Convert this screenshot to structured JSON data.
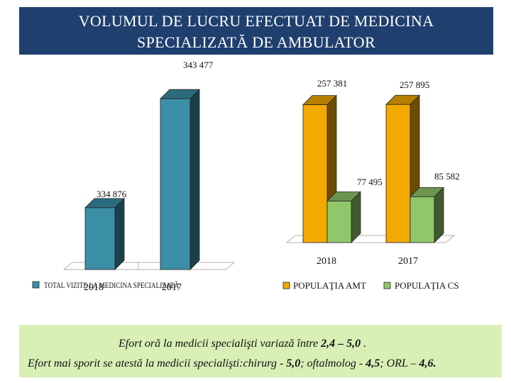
{
  "title": {
    "line1": "VOLUMUL DE LUCRU EFECTUAT DE MEDICINA",
    "line2": "SPECIALIZATĂ DE AMBULATOR"
  },
  "colors": {
    "banner": "#1f3f6e",
    "teal_bar": "#3b8fa6",
    "orange_bar": "#f2a900",
    "green_bar": "#8fc76a",
    "note_background": "#d8efb6"
  },
  "chart_data": [
    {
      "type": "bar",
      "categories": [
        "2018",
        "2017"
      ],
      "series": [
        {
          "name": "TOTAL VIZITE LA MEDICINA SPECIALIZATĂ",
          "values": [
            334876,
            343477
          ],
          "value_labels": [
            "334 876",
            "343 477"
          ]
        }
      ],
      "ylim": [
        330000,
        345000
      ],
      "legend": "bottom-left"
    },
    {
      "type": "bar",
      "categories": [
        "2018",
        "2017"
      ],
      "series": [
        {
          "name": "POPULAŢIA AMT",
          "values": [
            257381,
            257895
          ],
          "value_labels": [
            "257 381",
            "257 895"
          ]
        },
        {
          "name": "POPULAŢIA CS",
          "values": [
            77495,
            85582
          ],
          "value_labels": [
            "77 495",
            "85 582"
          ]
        }
      ],
      "ylim": [
        0,
        290000
      ],
      "legend": "bottom"
    }
  ],
  "notes": {
    "line1_prefix": "Efort oră la medicii specialişti variază între ",
    "line1_value": "2,4 – 5,0",
    "line1_suffix": " .",
    "line2_prefix": "Efort mai sporit se atestă la medicii specialişti:chirurg - ",
    "line2_v1": "5,0",
    "line2_mid1": "; oftalmolog - ",
    "line2_v2": "4,5",
    "line2_mid2": "; ORL – ",
    "line2_v3": "4,6."
  }
}
